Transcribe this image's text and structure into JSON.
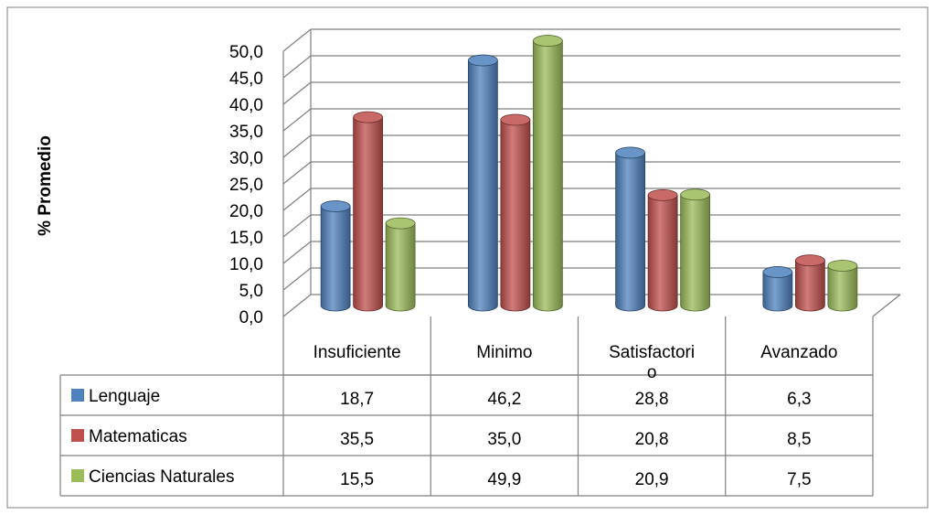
{
  "chart_data": {
    "type": "bar",
    "style": "3d-clustered-column-with-data-table",
    "ylabel": "% Promedio",
    "ylim": [
      0,
      50
    ],
    "ytick_step": 5,
    "yticks": [
      "0,0",
      "5,0",
      "10,0",
      "15,0",
      "20,0",
      "25,0",
      "30,0",
      "35,0",
      "40,0",
      "45,0",
      "50,0"
    ],
    "categories": [
      "Insuficiente",
      "Minimo",
      "Satisfactori\no",
      "Avanzado"
    ],
    "series": [
      {
        "name": "Lenguaje",
        "color": "#4F81BD",
        "values": [
          18.7,
          46.2,
          28.8,
          6.3
        ],
        "labels": [
          "18,7",
          "46,2",
          "28,8",
          "6,3"
        ]
      },
      {
        "name": "Matematicas",
        "color": "#C0504D",
        "values": [
          35.5,
          35.0,
          20.8,
          8.5
        ],
        "labels": [
          "35,5",
          "35,0",
          "20,8",
          "8,5"
        ]
      },
      {
        "name": "Ciencias Naturales",
        "color": "#9BBB59",
        "values": [
          15.5,
          49.9,
          20.9,
          7.5
        ],
        "labels": [
          "15,5",
          "49,9",
          "20,9",
          "7,5"
        ]
      }
    ],
    "grid": true,
    "legend": "data-table"
  }
}
